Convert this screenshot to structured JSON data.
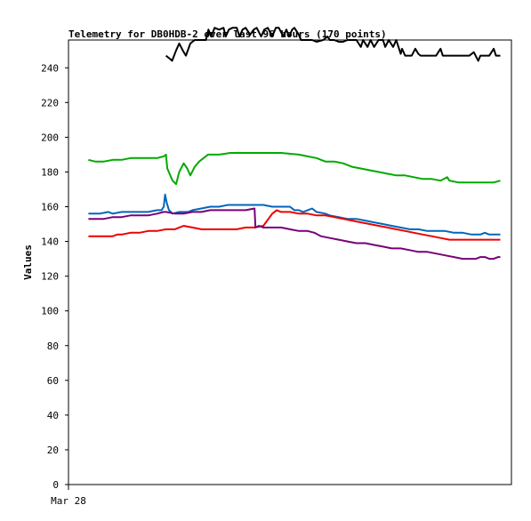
{
  "chart_data": {
    "type": "line",
    "title": "Telemetry for DB0HDB-2 over last 96 hours (170 points)",
    "ylabel": "Values",
    "xlabel": "",
    "ylim": [
      0,
      256
    ],
    "yticks": [
      0,
      20,
      40,
      60,
      80,
      100,
      120,
      140,
      160,
      180,
      200,
      220,
      240
    ],
    "xlim": [
      0,
      100
    ],
    "xticks": [
      {
        "x": 0,
        "label": "Mar 28"
      }
    ],
    "grid": false,
    "legend": "none",
    "series": [
      {
        "color": "#00aa00",
        "points": [
          [
            4.5,
            187
          ],
          [
            6,
            186
          ],
          [
            8,
            186
          ],
          [
            10,
            187
          ],
          [
            12,
            187
          ],
          [
            14,
            188
          ],
          [
            16,
            188
          ],
          [
            18,
            188
          ],
          [
            20,
            188
          ],
          [
            21.5,
            189
          ],
          [
            22,
            190
          ],
          [
            22.3,
            182
          ],
          [
            23.5,
            175
          ],
          [
            24.3,
            173
          ],
          [
            25,
            180
          ],
          [
            26,
            185
          ],
          [
            26.8,
            182
          ],
          [
            27.5,
            178
          ],
          [
            28.5,
            183
          ],
          [
            29.5,
            186
          ],
          [
            30.5,
            188
          ],
          [
            31.5,
            190
          ],
          [
            34,
            190
          ],
          [
            36.5,
            191
          ],
          [
            40,
            191
          ],
          [
            44,
            191
          ],
          [
            48,
            191
          ],
          [
            52,
            190
          ],
          [
            54,
            189
          ],
          [
            56,
            188
          ],
          [
            58,
            186
          ],
          [
            60,
            186
          ],
          [
            62,
            185
          ],
          [
            64,
            183
          ],
          [
            66,
            182
          ],
          [
            68,
            181
          ],
          [
            70,
            180
          ],
          [
            72,
            179
          ],
          [
            74,
            178
          ],
          [
            76,
            178
          ],
          [
            78,
            177
          ],
          [
            80,
            176
          ],
          [
            82,
            176
          ],
          [
            84,
            175
          ],
          [
            85.5,
            177
          ],
          [
            86,
            175
          ],
          [
            88,
            174
          ],
          [
            90,
            174
          ],
          [
            92,
            174
          ],
          [
            94,
            174
          ],
          [
            96,
            174
          ],
          [
            97.5,
            175
          ]
        ]
      },
      {
        "color": "#0066bb",
        "points": [
          [
            4.5,
            156
          ],
          [
            7,
            156
          ],
          [
            9,
            157
          ],
          [
            10,
            156
          ],
          [
            12,
            157
          ],
          [
            14,
            157
          ],
          [
            16,
            157
          ],
          [
            18,
            157
          ],
          [
            20,
            158
          ],
          [
            21,
            158
          ],
          [
            21.5,
            160
          ],
          [
            21.8,
            167
          ],
          [
            22.2,
            162
          ],
          [
            22.7,
            158
          ],
          [
            23.5,
            156
          ],
          [
            25,
            157
          ],
          [
            27,
            157
          ],
          [
            28,
            158
          ],
          [
            30,
            159
          ],
          [
            32,
            160
          ],
          [
            34,
            160
          ],
          [
            36,
            161
          ],
          [
            38,
            161
          ],
          [
            40,
            161
          ],
          [
            42,
            161
          ],
          [
            44,
            161
          ],
          [
            46,
            160
          ],
          [
            48,
            160
          ],
          [
            50,
            160
          ],
          [
            51,
            158
          ],
          [
            52,
            158
          ],
          [
            53,
            157
          ],
          [
            54,
            158
          ],
          [
            55,
            159
          ],
          [
            56,
            157
          ],
          [
            58,
            156
          ],
          [
            59,
            155
          ],
          [
            61,
            154
          ],
          [
            63,
            153
          ],
          [
            65,
            153
          ],
          [
            67,
            152
          ],
          [
            69,
            151
          ],
          [
            71,
            150
          ],
          [
            73,
            149
          ],
          [
            75,
            148
          ],
          [
            77,
            147
          ],
          [
            79,
            147
          ],
          [
            81,
            146
          ],
          [
            83,
            146
          ],
          [
            85,
            146
          ],
          [
            87,
            145
          ],
          [
            89,
            145
          ],
          [
            91,
            144
          ],
          [
            93,
            144
          ],
          [
            94,
            145
          ],
          [
            95,
            144
          ],
          [
            96,
            144
          ],
          [
            97.5,
            144
          ]
        ]
      },
      {
        "color": "#ee0000",
        "points": [
          [
            4.5,
            143
          ],
          [
            6,
            143
          ],
          [
            8,
            143
          ],
          [
            10,
            143
          ],
          [
            11,
            144
          ],
          [
            12,
            144
          ],
          [
            14,
            145
          ],
          [
            16,
            145
          ],
          [
            18,
            146
          ],
          [
            20,
            146
          ],
          [
            22,
            147
          ],
          [
            24,
            147
          ],
          [
            25,
            148
          ],
          [
            26,
            149
          ],
          [
            28,
            148
          ],
          [
            30,
            147
          ],
          [
            32,
            147
          ],
          [
            34,
            147
          ],
          [
            36,
            147
          ],
          [
            38,
            147
          ],
          [
            40,
            148
          ],
          [
            42,
            148
          ],
          [
            44,
            149
          ],
          [
            46,
            156
          ],
          [
            47,
            158
          ],
          [
            48,
            157
          ],
          [
            50,
            157
          ],
          [
            52,
            156
          ],
          [
            54,
            156
          ],
          [
            56,
            155
          ],
          [
            58,
            155
          ],
          [
            60,
            154
          ],
          [
            62,
            153
          ],
          [
            64,
            152
          ],
          [
            66,
            151
          ],
          [
            68,
            150
          ],
          [
            70,
            149
          ],
          [
            72,
            148
          ],
          [
            74,
            147
          ],
          [
            76,
            146
          ],
          [
            78,
            145
          ],
          [
            80,
            144
          ],
          [
            82,
            143
          ],
          [
            84,
            142
          ],
          [
            86,
            141
          ],
          [
            88,
            141
          ],
          [
            90,
            141
          ],
          [
            92,
            141
          ],
          [
            94,
            141
          ],
          [
            96,
            141
          ],
          [
            97.5,
            141
          ]
        ]
      },
      {
        "color": "#770077",
        "points": [
          [
            4.5,
            153
          ],
          [
            6,
            153
          ],
          [
            8,
            153
          ],
          [
            10,
            154
          ],
          [
            12,
            154
          ],
          [
            14,
            155
          ],
          [
            16,
            155
          ],
          [
            18,
            155
          ],
          [
            20,
            156
          ],
          [
            21.5,
            157
          ],
          [
            22,
            157
          ],
          [
            24,
            156
          ],
          [
            26,
            156
          ],
          [
            28,
            157
          ],
          [
            30,
            157
          ],
          [
            32,
            158
          ],
          [
            34,
            158
          ],
          [
            36,
            158
          ],
          [
            38,
            158
          ],
          [
            40,
            158
          ],
          [
            42,
            159
          ],
          [
            42.2,
            148
          ],
          [
            43,
            149
          ],
          [
            44,
            148
          ],
          [
            46,
            148
          ],
          [
            48,
            148
          ],
          [
            50,
            147
          ],
          [
            52,
            146
          ],
          [
            54,
            146
          ],
          [
            55.5,
            145
          ],
          [
            57,
            143
          ],
          [
            59,
            142
          ],
          [
            61,
            141
          ],
          [
            63,
            140
          ],
          [
            65,
            139
          ],
          [
            67,
            139
          ],
          [
            69,
            138
          ],
          [
            71,
            137
          ],
          [
            73,
            136
          ],
          [
            75,
            136
          ],
          [
            77,
            135
          ],
          [
            79,
            134
          ],
          [
            81,
            134
          ],
          [
            83,
            133
          ],
          [
            85,
            132
          ],
          [
            87,
            131
          ],
          [
            89,
            130
          ],
          [
            91,
            130
          ],
          [
            92,
            130
          ],
          [
            93,
            131
          ],
          [
            94,
            131
          ],
          [
            95,
            130
          ],
          [
            96,
            130
          ],
          [
            97,
            131
          ],
          [
            97.5,
            131
          ]
        ]
      },
      {
        "color": "#000000",
        "points": [
          [
            22,
            247
          ],
          [
            23,
            245
          ],
          [
            23.4,
            244
          ],
          [
            24.3,
            250
          ],
          [
            25,
            254
          ],
          [
            25.8,
            250
          ],
          [
            26.5,
            247
          ],
          [
            27.5,
            254
          ],
          [
            28.5,
            256
          ],
          [
            30,
            256
          ],
          [
            31,
            256
          ],
          [
            31.6,
            262
          ],
          [
            32.2,
            258
          ],
          [
            33,
            263
          ],
          [
            34,
            262
          ],
          [
            35,
            263
          ],
          [
            35.5,
            258
          ],
          [
            36.2,
            262
          ],
          [
            37,
            263
          ],
          [
            38,
            263
          ],
          [
            38.6,
            258
          ],
          [
            39.3,
            262
          ],
          [
            40,
            263
          ],
          [
            41,
            259
          ],
          [
            41.8,
            262
          ],
          [
            42.5,
            263
          ],
          [
            43.5,
            258
          ],
          [
            44.2,
            262
          ],
          [
            45,
            263
          ],
          [
            46,
            258
          ],
          [
            46.8,
            263
          ],
          [
            47.5,
            263
          ],
          [
            48.5,
            258
          ],
          [
            49.2,
            262
          ],
          [
            49.8,
            258
          ],
          [
            50.5,
            262
          ],
          [
            51,
            263
          ],
          [
            52,
            259
          ],
          [
            52.5,
            256
          ],
          [
            54,
            256
          ],
          [
            55,
            256
          ],
          [
            56,
            255
          ],
          [
            57.5,
            256
          ],
          [
            58.5,
            258
          ],
          [
            59,
            256
          ],
          [
            60,
            256
          ],
          [
            61,
            255
          ],
          [
            62,
            255
          ],
          [
            63,
            256
          ],
          [
            64,
            256
          ],
          [
            65,
            256
          ],
          [
            66,
            252
          ],
          [
            66.5,
            256
          ],
          [
            67.5,
            252
          ],
          [
            68.2,
            256
          ],
          [
            69,
            252
          ],
          [
            70,
            256
          ],
          [
            71,
            256
          ],
          [
            71.5,
            252
          ],
          [
            72.3,
            256
          ],
          [
            73.3,
            252
          ],
          [
            74,
            256
          ],
          [
            75,
            248
          ],
          [
            75.3,
            251
          ],
          [
            76,
            247
          ],
          [
            76.5,
            247
          ],
          [
            77.5,
            247
          ],
          [
            78.3,
            251
          ],
          [
            79,
            248
          ],
          [
            79.5,
            247
          ],
          [
            80.5,
            247
          ],
          [
            82,
            247
          ],
          [
            83,
            247
          ],
          [
            84,
            251
          ],
          [
            84.5,
            247
          ],
          [
            86,
            247
          ],
          [
            88,
            247
          ],
          [
            89.5,
            247
          ],
          [
            90.5,
            247
          ],
          [
            91.5,
            249
          ],
          [
            92.5,
            244
          ],
          [
            93,
            247
          ],
          [
            95,
            247
          ],
          [
            96,
            251
          ],
          [
            96.5,
            247
          ],
          [
            97.5,
            247
          ]
        ]
      }
    ]
  }
}
